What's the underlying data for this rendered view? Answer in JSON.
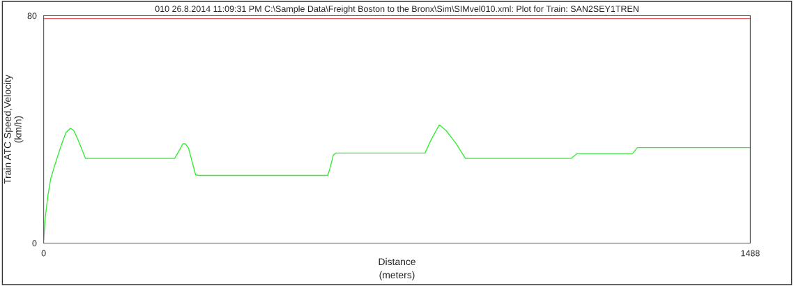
{
  "chart_data": {
    "type": "line",
    "title": "010 26.8.2014 11:09:31 PM C:\\Sample Data\\Freight Boston to the Bronx\\Sim\\SIMvel010.xml: Plot for Train: SAN2SEY1TREN",
    "xlabel": "Distance\n(meters)",
    "ylabel": "Train ATC Speed,Velocity\n(km/h)",
    "series": [
      {
        "color": "#e06060",
        "x": [
          0,
          1488
        ],
        "values": [
          79,
          79
        ]
      },
      {
        "color": "#33ee33",
        "x": [
          0,
          3,
          9,
          15,
          26,
          38,
          47,
          56,
          63,
          73,
          88,
          276,
          293,
          298,
          305,
          320,
          327,
          598,
          603,
          610,
          616,
          803,
          815,
          833,
          847,
          869,
          888,
          1111,
          1123,
          1240,
          1250,
          1488
        ],
        "values": [
          1.2,
          8.4,
          16.8,
          22.8,
          28.8,
          34.9,
          38.9,
          40.4,
          39.7,
          36.1,
          29.8,
          29.8,
          34.9,
          35.0,
          33.4,
          24.0,
          23.8,
          23.8,
          26.4,
          31.0,
          31.7,
          31.7,
          36.1,
          41.6,
          39.7,
          34.9,
          29.8,
          29.8,
          31.5,
          31.5,
          33.6,
          33.6
        ]
      }
    ],
    "xlim": [
      0,
      1488
    ],
    "ylim": [
      0,
      80
    ],
    "xticks": [
      0,
      1488
    ],
    "yticks": [
      0,
      80
    ],
    "grid": false,
    "legend": false
  }
}
